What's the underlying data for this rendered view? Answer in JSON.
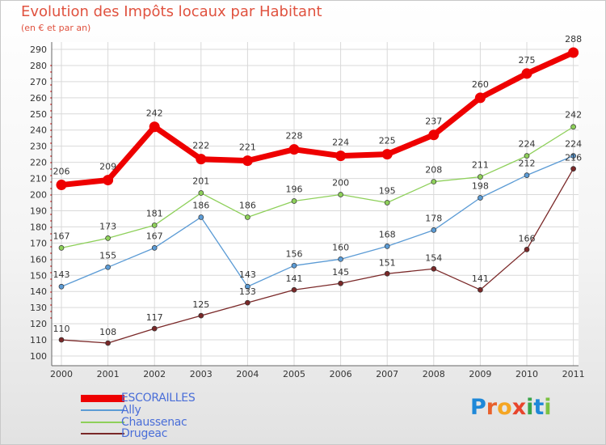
{
  "title": "Evolution des Impôts locaux par Habitant",
  "subtitle": "(en € et par an)",
  "logo": {
    "text": "Proxiti",
    "letters": [
      "P",
      "r",
      "o",
      "x",
      "i",
      "t",
      "i"
    ],
    "colors": [
      "#1e88d8",
      "#e8612c",
      "#f5a623",
      "#e8452c",
      "#3aa54a",
      "#1e88d8",
      "#7cc242"
    ]
  },
  "chart_data": {
    "type": "line",
    "title": "Evolution des Impôts locaux par Habitant",
    "subtitle": "(en € et par an)",
    "xlabel": "",
    "ylabel": "",
    "x": [
      "2000",
      "2001",
      "2002",
      "2003",
      "2004",
      "2005",
      "2006",
      "2007",
      "2008",
      "2009",
      "2010",
      "2011"
    ],
    "ylim": [
      100,
      290
    ],
    "yticks": [
      100,
      110,
      120,
      130,
      140,
      150,
      160,
      170,
      180,
      190,
      200,
      210,
      220,
      230,
      240,
      250,
      260,
      270,
      280,
      290
    ],
    "grid": true,
    "legend_position": "bottom-left",
    "series": [
      {
        "name": "ESCORAILLES",
        "color": "#ee0000",
        "emphasis": true,
        "values": [
          206,
          209,
          242,
          222,
          221,
          228,
          224,
          225,
          237,
          260,
          275,
          288
        ]
      },
      {
        "name": "Ally",
        "color": "#5b9bd5",
        "emphasis": false,
        "values": [
          143,
          155,
          167,
          186,
          143,
          156,
          160,
          168,
          178,
          198,
          212,
          224
        ]
      },
      {
        "name": "Chaussenac",
        "color": "#8ed05a",
        "emphasis": false,
        "values": [
          167,
          173,
          181,
          201,
          186,
          196,
          200,
          195,
          208,
          211,
          224,
          242
        ]
      },
      {
        "name": "Drugeac",
        "color": "#7a2828",
        "emphasis": false,
        "values": [
          110,
          108,
          117,
          125,
          133,
          141,
          145,
          151,
          154,
          141,
          166,
          216
        ]
      }
    ]
  }
}
